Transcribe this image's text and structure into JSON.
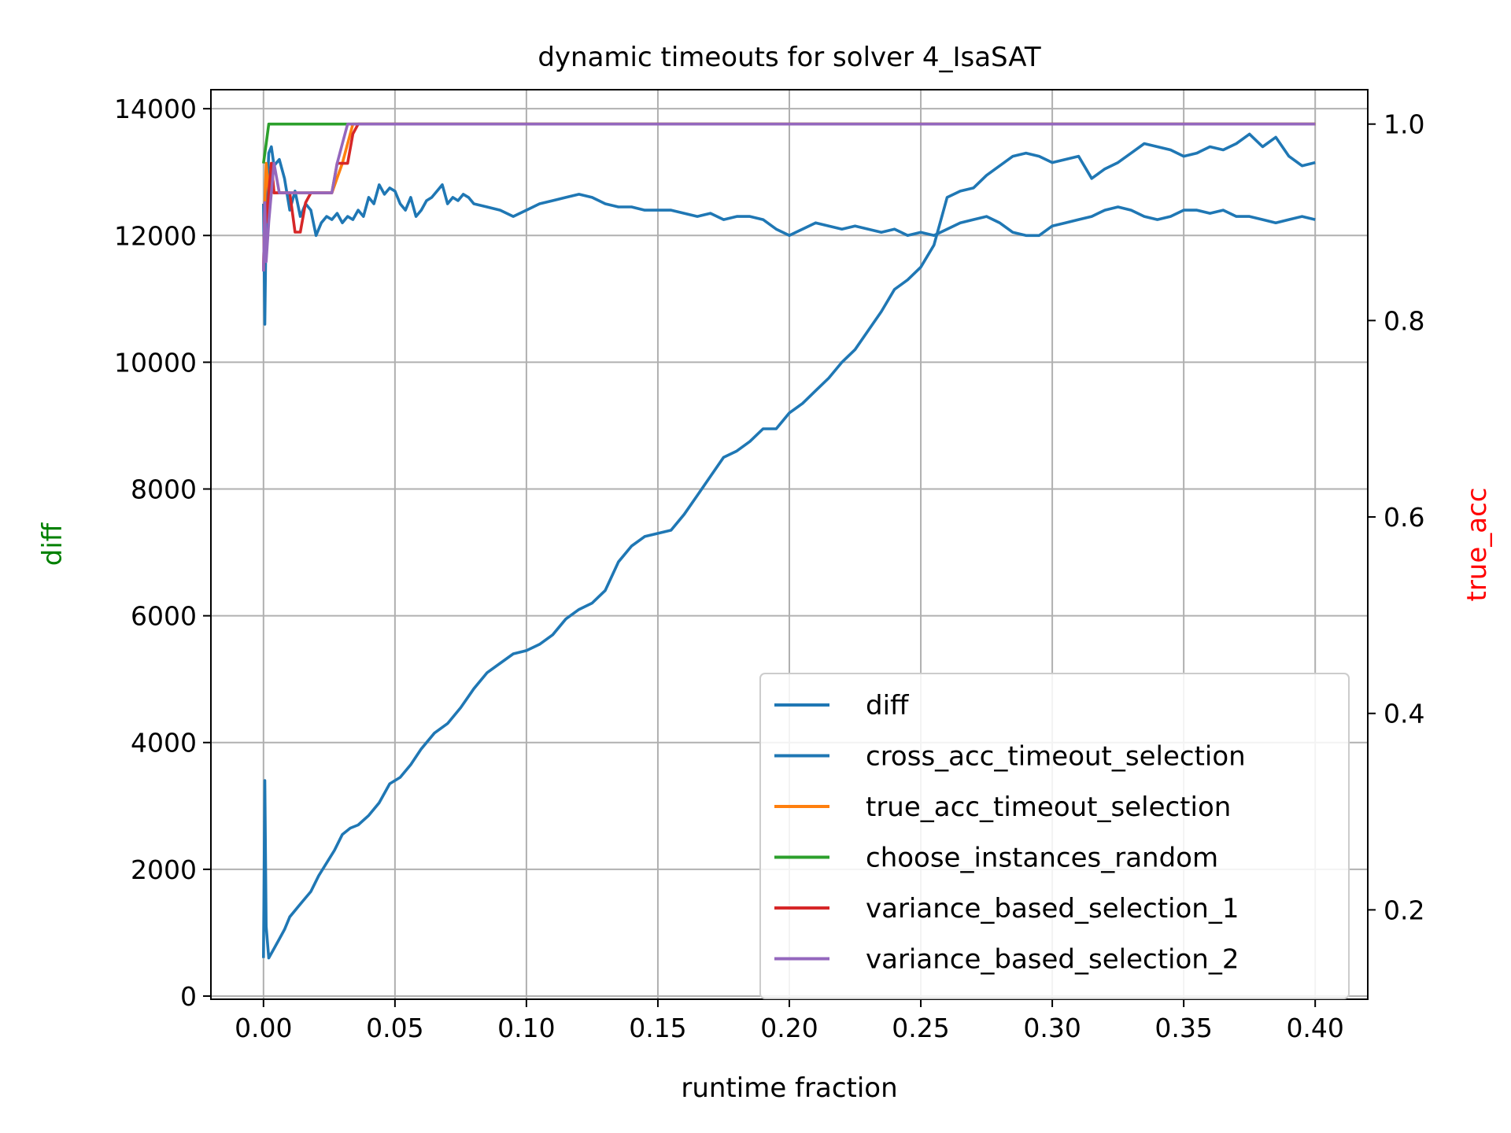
{
  "chart_data": {
    "type": "line",
    "title": "dynamic timeouts for solver 4_IsaSAT",
    "xlabel": "runtime fraction",
    "ylabel_left": "diff",
    "ylabel_left_color": "#008000",
    "ylabel_right": "true_acc",
    "ylabel_right_color": "#ff0000",
    "xlim": [
      -0.02,
      0.42
    ],
    "ylim_left": [
      -50,
      14300
    ],
    "ylim_right": [
      0.109,
      1.035
    ],
    "xticks": [
      0.0,
      0.05,
      0.1,
      0.15,
      0.2,
      0.25,
      0.3,
      0.35,
      0.4
    ],
    "xtick_labels": [
      "0.00",
      "0.05",
      "0.10",
      "0.15",
      "0.20",
      "0.25",
      "0.30",
      "0.35",
      "0.40"
    ],
    "yticks_left": [
      0,
      2000,
      4000,
      6000,
      8000,
      10000,
      12000,
      14000
    ],
    "yticks_left_labels": [
      "0",
      "2000",
      "4000",
      "6000",
      "8000",
      "10000",
      "12000",
      "14000"
    ],
    "yticks_right": [
      0.2,
      0.4,
      0.6,
      0.8,
      1.0
    ],
    "yticks_right_labels": [
      "0.2",
      "0.4",
      "0.6",
      "0.8",
      "1.0"
    ],
    "grid": true,
    "legend_position": "lower-right",
    "series": [
      {
        "name": "diff",
        "axis": "left",
        "color": "#1f77b4",
        "x": [
          0.0,
          0.0005,
          0.001,
          0.002,
          0.004,
          0.006,
          0.008,
          0.01,
          0.012,
          0.015,
          0.018,
          0.021,
          0.024,
          0.027,
          0.03,
          0.033,
          0.036,
          0.04,
          0.044,
          0.048,
          0.052,
          0.056,
          0.06,
          0.065,
          0.07,
          0.075,
          0.08,
          0.085,
          0.09,
          0.095,
          0.1,
          0.105,
          0.11,
          0.115,
          0.12,
          0.125,
          0.13,
          0.135,
          0.14,
          0.145,
          0.15,
          0.155,
          0.16,
          0.165,
          0.17,
          0.175,
          0.18,
          0.185,
          0.19,
          0.195,
          0.2,
          0.205,
          0.21,
          0.215,
          0.22,
          0.225,
          0.23,
          0.235,
          0.24,
          0.245,
          0.25,
          0.255,
          0.26,
          0.265,
          0.27,
          0.275,
          0.28,
          0.285,
          0.29,
          0.295,
          0.3,
          0.305,
          0.31,
          0.315,
          0.32,
          0.325,
          0.33,
          0.335,
          0.34,
          0.345,
          0.35,
          0.355,
          0.36,
          0.365,
          0.37,
          0.375,
          0.38,
          0.385,
          0.39,
          0.395,
          0.4
        ],
        "values": [
          600,
          3400,
          1100,
          600,
          750,
          900,
          1050,
          1250,
          1350,
          1500,
          1650,
          1900,
          2100,
          2300,
          2550,
          2650,
          2700,
          2850,
          3050,
          3350,
          3450,
          3650,
          3900,
          4150,
          4300,
          4550,
          4850,
          5100,
          5250,
          5400,
          5450,
          5550,
          5700,
          5950,
          6100,
          6200,
          6400,
          6850,
          7100,
          7250,
          7300,
          7350,
          7600,
          7900,
          8200,
          8500,
          8600,
          8750,
          8950,
          8950,
          9200,
          9350,
          9550,
          9750,
          10000,
          10200,
          10500,
          10800,
          11150,
          11300,
          11500,
          11850,
          12600,
          12700,
          12750,
          12950,
          13100,
          13250,
          13300,
          13250,
          13150,
          13200,
          13250,
          12900,
          13050,
          13150,
          13300,
          13450,
          13400,
          13350,
          13250,
          13300,
          13400,
          13350,
          13450,
          13600,
          13400,
          13550,
          13250,
          13100,
          13150
        ]
      },
      {
        "name": "cross_acc_timeout_selection",
        "axis": "left",
        "color": "#1f77b4",
        "x": [
          0.0,
          0.0005,
          0.001,
          0.002,
          0.003,
          0.004,
          0.006,
          0.008,
          0.01,
          0.012,
          0.014,
          0.016,
          0.018,
          0.02,
          0.022,
          0.024,
          0.026,
          0.028,
          0.03,
          0.032,
          0.034,
          0.036,
          0.038,
          0.04,
          0.042,
          0.044,
          0.046,
          0.048,
          0.05,
          0.052,
          0.054,
          0.056,
          0.058,
          0.06,
          0.062,
          0.064,
          0.066,
          0.068,
          0.07,
          0.072,
          0.074,
          0.076,
          0.078,
          0.08,
          0.085,
          0.09,
          0.095,
          0.1,
          0.105,
          0.11,
          0.115,
          0.12,
          0.125,
          0.13,
          0.135,
          0.14,
          0.145,
          0.15,
          0.155,
          0.16,
          0.165,
          0.17,
          0.175,
          0.18,
          0.185,
          0.19,
          0.195,
          0.2,
          0.205,
          0.21,
          0.215,
          0.22,
          0.225,
          0.23,
          0.235,
          0.24,
          0.245,
          0.25,
          0.255,
          0.26,
          0.265,
          0.27,
          0.275,
          0.28,
          0.285,
          0.29,
          0.295,
          0.3,
          0.305,
          0.31,
          0.315,
          0.32,
          0.325,
          0.33,
          0.335,
          0.34,
          0.345,
          0.35,
          0.355,
          0.36,
          0.365,
          0.37,
          0.375,
          0.38,
          0.385,
          0.39,
          0.395,
          0.4
        ],
        "values": [
          12500,
          10600,
          12300,
          13300,
          13400,
          13100,
          13200,
          12900,
          12400,
          12700,
          12300,
          12500,
          12400,
          12000,
          12200,
          12300,
          12250,
          12350,
          12200,
          12300,
          12250,
          12400,
          12300,
          12600,
          12500,
          12800,
          12650,
          12750,
          12700,
          12500,
          12400,
          12600,
          12300,
          12400,
          12550,
          12600,
          12700,
          12800,
          12500,
          12600,
          12550,
          12650,
          12600,
          12500,
          12450,
          12400,
          12300,
          12400,
          12500,
          12550,
          12600,
          12650,
          12600,
          12500,
          12450,
          12450,
          12400,
          12400,
          12400,
          12350,
          12300,
          12350,
          12250,
          12300,
          12300,
          12250,
          12100,
          12000,
          12100,
          12200,
          12150,
          12100,
          12150,
          12100,
          12050,
          12100,
          12000,
          12050,
          12000,
          12100,
          12200,
          12250,
          12300,
          12200,
          12050,
          12000,
          12000,
          12150,
          12200,
          12250,
          12300,
          12400,
          12450,
          12400,
          12300,
          12250,
          12300,
          12400,
          12400,
          12350,
          12400,
          12300,
          12300,
          12250,
          12200,
          12250,
          12300,
          12250
        ]
      },
      {
        "name": "true_acc_timeout_selection",
        "axis": "right",
        "color": "#ff7f0e",
        "x": [
          0.0,
          0.0005,
          0.001,
          0.002,
          0.003,
          0.004,
          0.006,
          0.008,
          0.01,
          0.014,
          0.018,
          0.022,
          0.026,
          0.03,
          0.034,
          0.2,
          0.4
        ],
        "values": [
          0.85,
          0.92,
          0.96,
          0.93,
          0.96,
          0.93,
          0.93,
          0.93,
          0.93,
          0.93,
          0.93,
          0.93,
          0.93,
          0.96,
          1.0,
          1.0,
          1.0
        ]
      },
      {
        "name": "choose_instances_random",
        "axis": "right",
        "color": "#2ca02c",
        "x": [
          0.0,
          0.001,
          0.002,
          0.004,
          0.01,
          0.05,
          0.1,
          0.2,
          0.3,
          0.4
        ],
        "values": [
          0.96,
          0.98,
          1.0,
          1.0,
          1.0,
          1.0,
          1.0,
          1.0,
          1.0,
          1.0
        ]
      },
      {
        "name": "variance_based_selection_1",
        "axis": "right",
        "color": "#d62728",
        "x": [
          0.0,
          0.0005,
          0.001,
          0.002,
          0.003,
          0.004,
          0.006,
          0.008,
          0.01,
          0.012,
          0.014,
          0.016,
          0.018,
          0.02,
          0.022,
          0.024,
          0.026,
          0.028,
          0.03,
          0.032,
          0.034,
          0.036,
          0.2,
          0.4
        ],
        "values": [
          0.85,
          0.92,
          0.9,
          0.93,
          0.96,
          0.93,
          0.93,
          0.93,
          0.93,
          0.89,
          0.89,
          0.92,
          0.93,
          0.93,
          0.93,
          0.93,
          0.93,
          0.96,
          0.96,
          0.96,
          0.99,
          1.0,
          1.0,
          1.0
        ]
      },
      {
        "name": "variance_based_selection_2",
        "axis": "right",
        "color": "#9467bd",
        "x": [
          0.0,
          0.0005,
          0.001,
          0.002,
          0.003,
          0.004,
          0.006,
          0.008,
          0.01,
          0.012,
          0.014,
          0.016,
          0.018,
          0.02,
          0.022,
          0.024,
          0.026,
          0.028,
          0.03,
          0.032,
          0.2,
          0.4
        ],
        "values": [
          0.85,
          0.92,
          0.86,
          0.9,
          0.93,
          0.96,
          0.93,
          0.93,
          0.93,
          0.93,
          0.93,
          0.93,
          0.93,
          0.93,
          0.93,
          0.93,
          0.93,
          0.96,
          0.98,
          1.0,
          1.0,
          1.0
        ]
      }
    ]
  }
}
